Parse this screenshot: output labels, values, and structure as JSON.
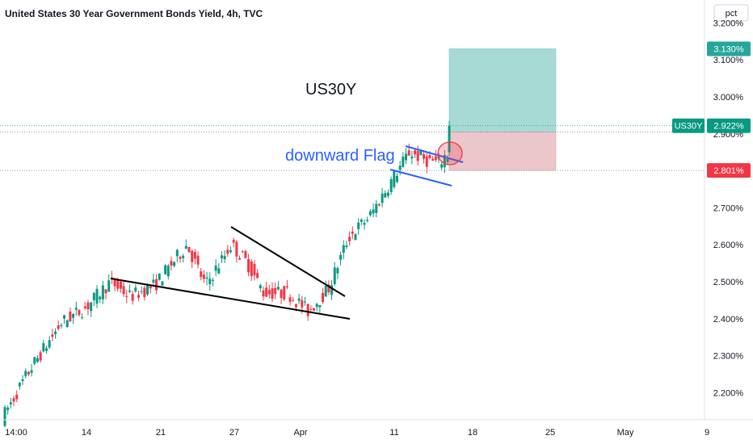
{
  "chart_data": {
    "type": "candlestick",
    "title": "United States 30 Year Government Bonds Yield, 4h, TVC",
    "unit_label": "pct",
    "y_ticks": [
      {
        "value": 3.2,
        "label": "3.200%"
      },
      {
        "value": 3.1,
        "label": "3.100%"
      },
      {
        "value": 3.0,
        "label": "3.000%"
      },
      {
        "value": 2.9,
        "label": "2.900%"
      },
      {
        "value": 2.7,
        "label": "2.700%"
      },
      {
        "value": 2.6,
        "label": "2.600%"
      },
      {
        "value": 2.5,
        "label": "2.500%"
      },
      {
        "value": 2.4,
        "label": "2.400%"
      },
      {
        "value": 2.3,
        "label": "2.300%"
      },
      {
        "value": 2.2,
        "label": "2.200%"
      }
    ],
    "x_ticks": [
      "14:00",
      "14",
      "21",
      "27",
      "Apr",
      "11",
      "18",
      "25",
      "May",
      "9"
    ],
    "price_tags": [
      {
        "label": "3.130%",
        "value": 3.13,
        "color": "#26a69a"
      },
      {
        "label": "2.922%",
        "value": 2.922,
        "color": "#089981",
        "symbol": "US30Y"
      },
      {
        "label": "2.801%",
        "value": 2.801,
        "color": "#f23645"
      }
    ],
    "annotations": [
      {
        "text": "US30Y",
        "color": "#131722"
      },
      {
        "text": "downward Flag",
        "color": "#2962ff"
      }
    ],
    "position": {
      "entry": 2.905,
      "target": 3.13,
      "stop": 2.801
    },
    "candle_count": 150,
    "colors": {
      "up": "#089981",
      "down": "#f23645",
      "profit_zone": "#a8dad5",
      "loss_zone": "#ebc6cb",
      "flag": "#2962ff",
      "pattern_lines": "#000000"
    }
  }
}
